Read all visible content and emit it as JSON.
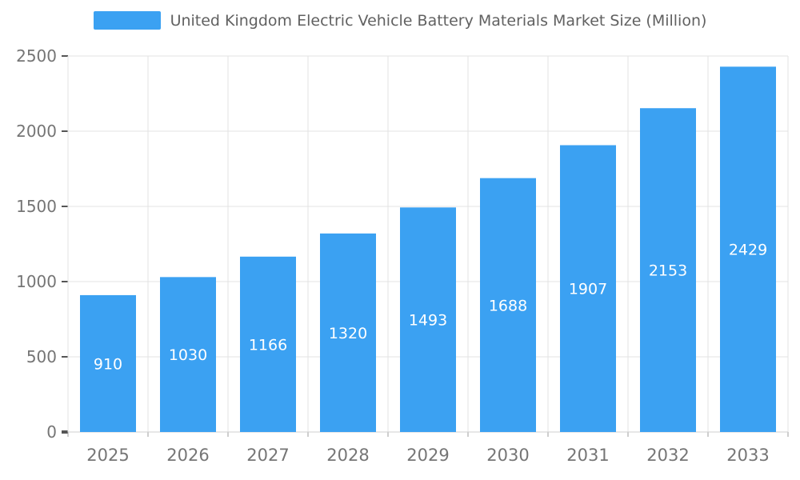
{
  "chart_data": {
    "type": "bar",
    "title": "United Kingdom Electric Vehicle Battery Materials Market Size (Million)",
    "categories": [
      "2025",
      "2026",
      "2027",
      "2028",
      "2029",
      "2030",
      "2031",
      "2032",
      "2033"
    ],
    "values": [
      910,
      1030,
      1166,
      1320,
      1493,
      1688,
      1907,
      2153,
      2429
    ],
    "xlabel": "",
    "ylabel": "",
    "ylim": [
      0,
      2500
    ],
    "ytick_step": 500,
    "ytick_labels": [
      "0",
      "500",
      "1000",
      "1500",
      "2000",
      "2500"
    ],
    "grid": true,
    "legend_position": "top",
    "bar_color": "#3BA1F2",
    "bar_label_color": "#ffffff",
    "axis_text_color": "#757575",
    "grid_color": "#e3e3e3",
    "axis_tick_color": "#555555",
    "background": "#ffffff"
  }
}
